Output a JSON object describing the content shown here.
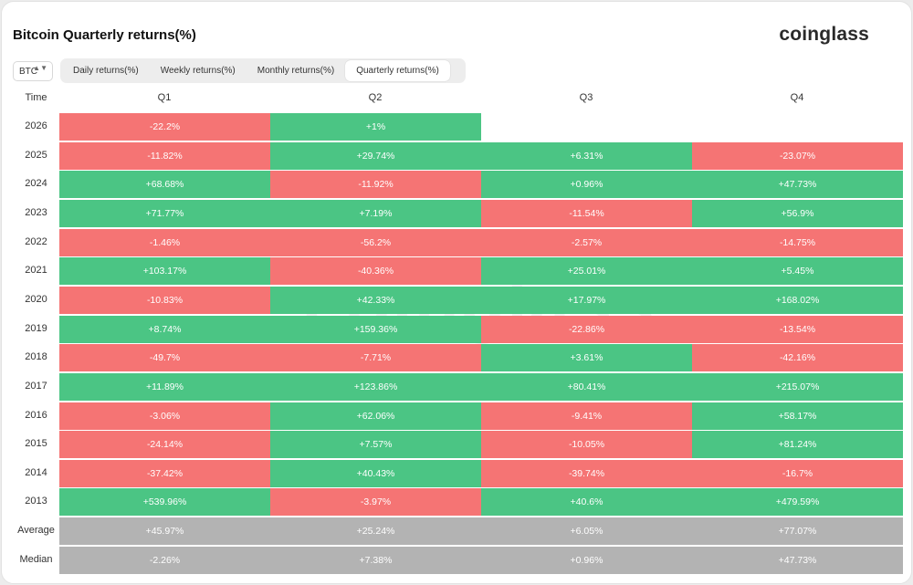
{
  "header": {
    "title": "Bitcoin Quarterly returns(%)",
    "logo": "coinglass",
    "watermark": "coinglass"
  },
  "coin_select": {
    "value": "BTC",
    "chevron": "▲▼"
  },
  "tabs": [
    {
      "label": "Daily returns(%)",
      "active": false
    },
    {
      "label": "Weekly returns(%)",
      "active": false
    },
    {
      "label": "Monthly returns(%)",
      "active": false
    },
    {
      "label": "Quarterly returns(%)",
      "active": true
    }
  ],
  "colors": {
    "positive": "#4bc584",
    "negative": "#f57474",
    "summary": "#b3b3b3"
  },
  "table": {
    "time_header": "Time",
    "columns": [
      "Q1",
      "Q2",
      "Q3",
      "Q4"
    ],
    "rows": [
      {
        "label": "2026",
        "kind": "year",
        "values": [
          "-22.2%",
          "+1%",
          "",
          ""
        ]
      },
      {
        "label": "2025",
        "kind": "year",
        "values": [
          "-11.82%",
          "+29.74%",
          "+6.31%",
          "-23.07%"
        ]
      },
      {
        "label": "2024",
        "kind": "year",
        "values": [
          "+68.68%",
          "-11.92%",
          "+0.96%",
          "+47.73%"
        ]
      },
      {
        "label": "2023",
        "kind": "year",
        "values": [
          "+71.77%",
          "+7.19%",
          "-11.54%",
          "+56.9%"
        ]
      },
      {
        "label": "2022",
        "kind": "year",
        "values": [
          "-1.46%",
          "-56.2%",
          "-2.57%",
          "-14.75%"
        ]
      },
      {
        "label": "2021",
        "kind": "year",
        "values": [
          "+103.17%",
          "-40.36%",
          "+25.01%",
          "+5.45%"
        ]
      },
      {
        "label": "2020",
        "kind": "year",
        "values": [
          "-10.83%",
          "+42.33%",
          "+17.97%",
          "+168.02%"
        ]
      },
      {
        "label": "2019",
        "kind": "year",
        "values": [
          "+8.74%",
          "+159.36%",
          "-22.86%",
          "-13.54%"
        ]
      },
      {
        "label": "2018",
        "kind": "year",
        "values": [
          "-49.7%",
          "-7.71%",
          "+3.61%",
          "-42.16%"
        ]
      },
      {
        "label": "2017",
        "kind": "year",
        "values": [
          "+11.89%",
          "+123.86%",
          "+80.41%",
          "+215.07%"
        ]
      },
      {
        "label": "2016",
        "kind": "year",
        "values": [
          "-3.06%",
          "+62.06%",
          "-9.41%",
          "+58.17%"
        ]
      },
      {
        "label": "2015",
        "kind": "year",
        "values": [
          "-24.14%",
          "+7.57%",
          "-10.05%",
          "+81.24%"
        ]
      },
      {
        "label": "2014",
        "kind": "year",
        "values": [
          "-37.42%",
          "+40.43%",
          "-39.74%",
          "-16.7%"
        ]
      },
      {
        "label": "2013",
        "kind": "year",
        "values": [
          "+539.96%",
          "-3.97%",
          "+40.6%",
          "+479.59%"
        ]
      },
      {
        "label": "Average",
        "kind": "summary",
        "values": [
          "+45.97%",
          "+25.24%",
          "+6.05%",
          "+77.07%"
        ]
      },
      {
        "label": "Median",
        "kind": "summary",
        "values": [
          "-2.26%",
          "+7.38%",
          "+0.96%",
          "+47.73%"
        ]
      }
    ]
  }
}
